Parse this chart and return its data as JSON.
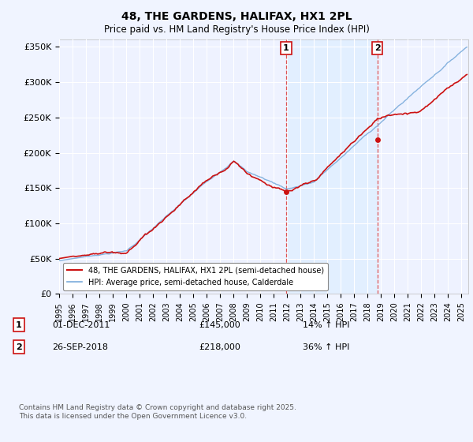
{
  "title": "48, THE GARDENS, HALIFAX, HX1 2PL",
  "subtitle": "Price paid vs. HM Land Registry's House Price Index (HPI)",
  "ylabel_ticks": [
    "£0",
    "£50K",
    "£100K",
    "£150K",
    "£200K",
    "£250K",
    "£300K",
    "£350K"
  ],
  "ytick_values": [
    0,
    50000,
    100000,
    150000,
    200000,
    250000,
    300000,
    350000
  ],
  "ylim": [
    0,
    360000
  ],
  "xlim_start": 1995.0,
  "xlim_end": 2025.5,
  "hpi_color": "#7aabdb",
  "price_color": "#cc1111",
  "marker1_x": 2011.92,
  "marker1_y": 145000,
  "marker2_x": 2018.73,
  "marker2_y": 218000,
  "vline1_x": 2011.92,
  "vline2_x": 2018.73,
  "shade_color": "#ddeeff",
  "vline_color": "#dd4444",
  "legend_line1": "48, THE GARDENS, HALIFAX, HX1 2PL (semi-detached house)",
  "legend_line2": "HPI: Average price, semi-detached house, Calderdale",
  "annotation1_date": "01-DEC-2011",
  "annotation1_price": "£145,000",
  "annotation1_hpi": "14% ↑ HPI",
  "annotation2_date": "26-SEP-2018",
  "annotation2_price": "£218,000",
  "annotation2_hpi": "36% ↑ HPI",
  "footnote": "Contains HM Land Registry data © Crown copyright and database right 2025.\nThis data is licensed under the Open Government Licence v3.0.",
  "background_color": "#f0f4ff",
  "plot_bg_color": "#eef2ff"
}
